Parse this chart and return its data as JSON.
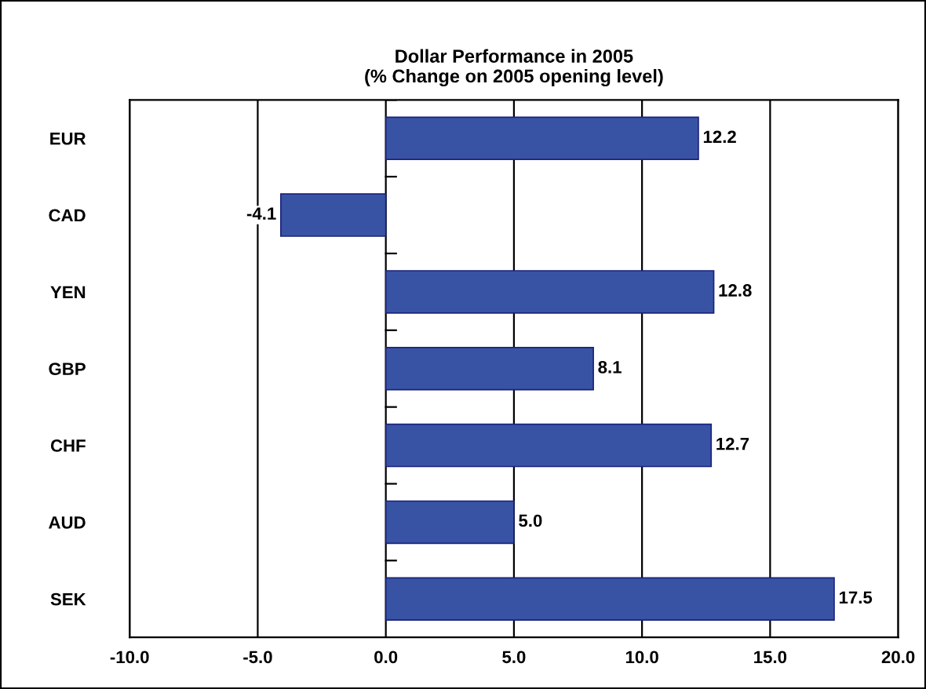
{
  "chart_data": {
    "type": "bar",
    "orientation": "horizontal",
    "title": "Dollar Performance in 2005\n(% Change on 2005 opening level)",
    "categories": [
      "EUR",
      "CAD",
      "YEN",
      "GBP",
      "CHF",
      "AUD",
      "SEK"
    ],
    "values": [
      12.2,
      -4.1,
      12.8,
      8.1,
      12.7,
      5.0,
      17.5
    ],
    "value_labels": [
      "12.2",
      "-4.1",
      "12.8",
      "8.1",
      "12.7",
      "5.0",
      "17.5"
    ],
    "color": "#3953a4",
    "xlim": [
      -10,
      20
    ],
    "xticks": [
      {
        "value": -10,
        "label": "-10.0"
      },
      {
        "value": -5,
        "label": "-5.0"
      },
      {
        "value": 0,
        "label": "0.0"
      },
      {
        "value": 5,
        "label": "5.0"
      },
      {
        "value": 10,
        "label": "10.0"
      },
      {
        "value": 15,
        "label": "15.0"
      },
      {
        "value": 20,
        "label": "20.0"
      }
    ],
    "grid": "x"
  }
}
